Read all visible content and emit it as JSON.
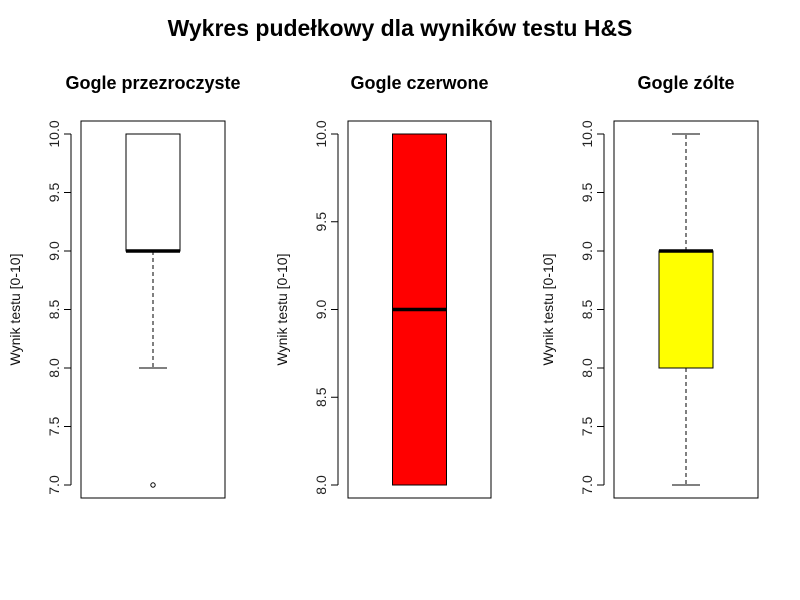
{
  "chart_data": {
    "type": "boxplot",
    "title": "Wykres pudełkowy dla wyników testu H&S",
    "panels": [
      {
        "title": "Gogle przezroczyste",
        "ylabel": "Wynik testu [0-10]",
        "ylim": [
          7.0,
          10.0
        ],
        "yticks": [
          7.0,
          7.5,
          8.0,
          8.5,
          9.0,
          9.5,
          10.0
        ],
        "tick_labels": [
          "7.0",
          "7.5",
          "8.0",
          "8.5",
          "9.0",
          "9.5",
          "10.0"
        ],
        "fill": "#ffffff",
        "box": {
          "whisker_low": 8.0,
          "q1": 9.0,
          "median": 9.0,
          "q3": 10.0,
          "whisker_high": 10.0,
          "outliers": [
            7.0
          ]
        }
      },
      {
        "title": "Gogle czerwone",
        "ylabel": "Wynik testu [0-10]",
        "ylim": [
          8.0,
          10.0
        ],
        "yticks": [
          8.0,
          8.5,
          9.0,
          9.5,
          10.0
        ],
        "tick_labels": [
          "8.0",
          "8.5",
          "9.0",
          "9.5",
          "10.0"
        ],
        "fill": "#ff0000",
        "box": {
          "whisker_low": 8.0,
          "q1": 8.0,
          "median": 9.0,
          "q3": 10.0,
          "whisker_high": 10.0,
          "outliers": []
        }
      },
      {
        "title": "Gogle zólte",
        "ylabel": "Wynik testu [0-10]",
        "ylim": [
          7.0,
          10.0
        ],
        "yticks": [
          7.0,
          7.5,
          8.0,
          8.5,
          9.0,
          9.5,
          10.0
        ],
        "tick_labels": [
          "7.0",
          "7.5",
          "8.0",
          "8.5",
          "9.0",
          "9.5",
          "10.0"
        ],
        "fill": "#ffff00",
        "box": {
          "whisker_low": 7.0,
          "q1": 8.0,
          "median": 9.0,
          "q3": 9.0,
          "whisker_high": 10.0,
          "outliers": []
        }
      }
    ]
  }
}
